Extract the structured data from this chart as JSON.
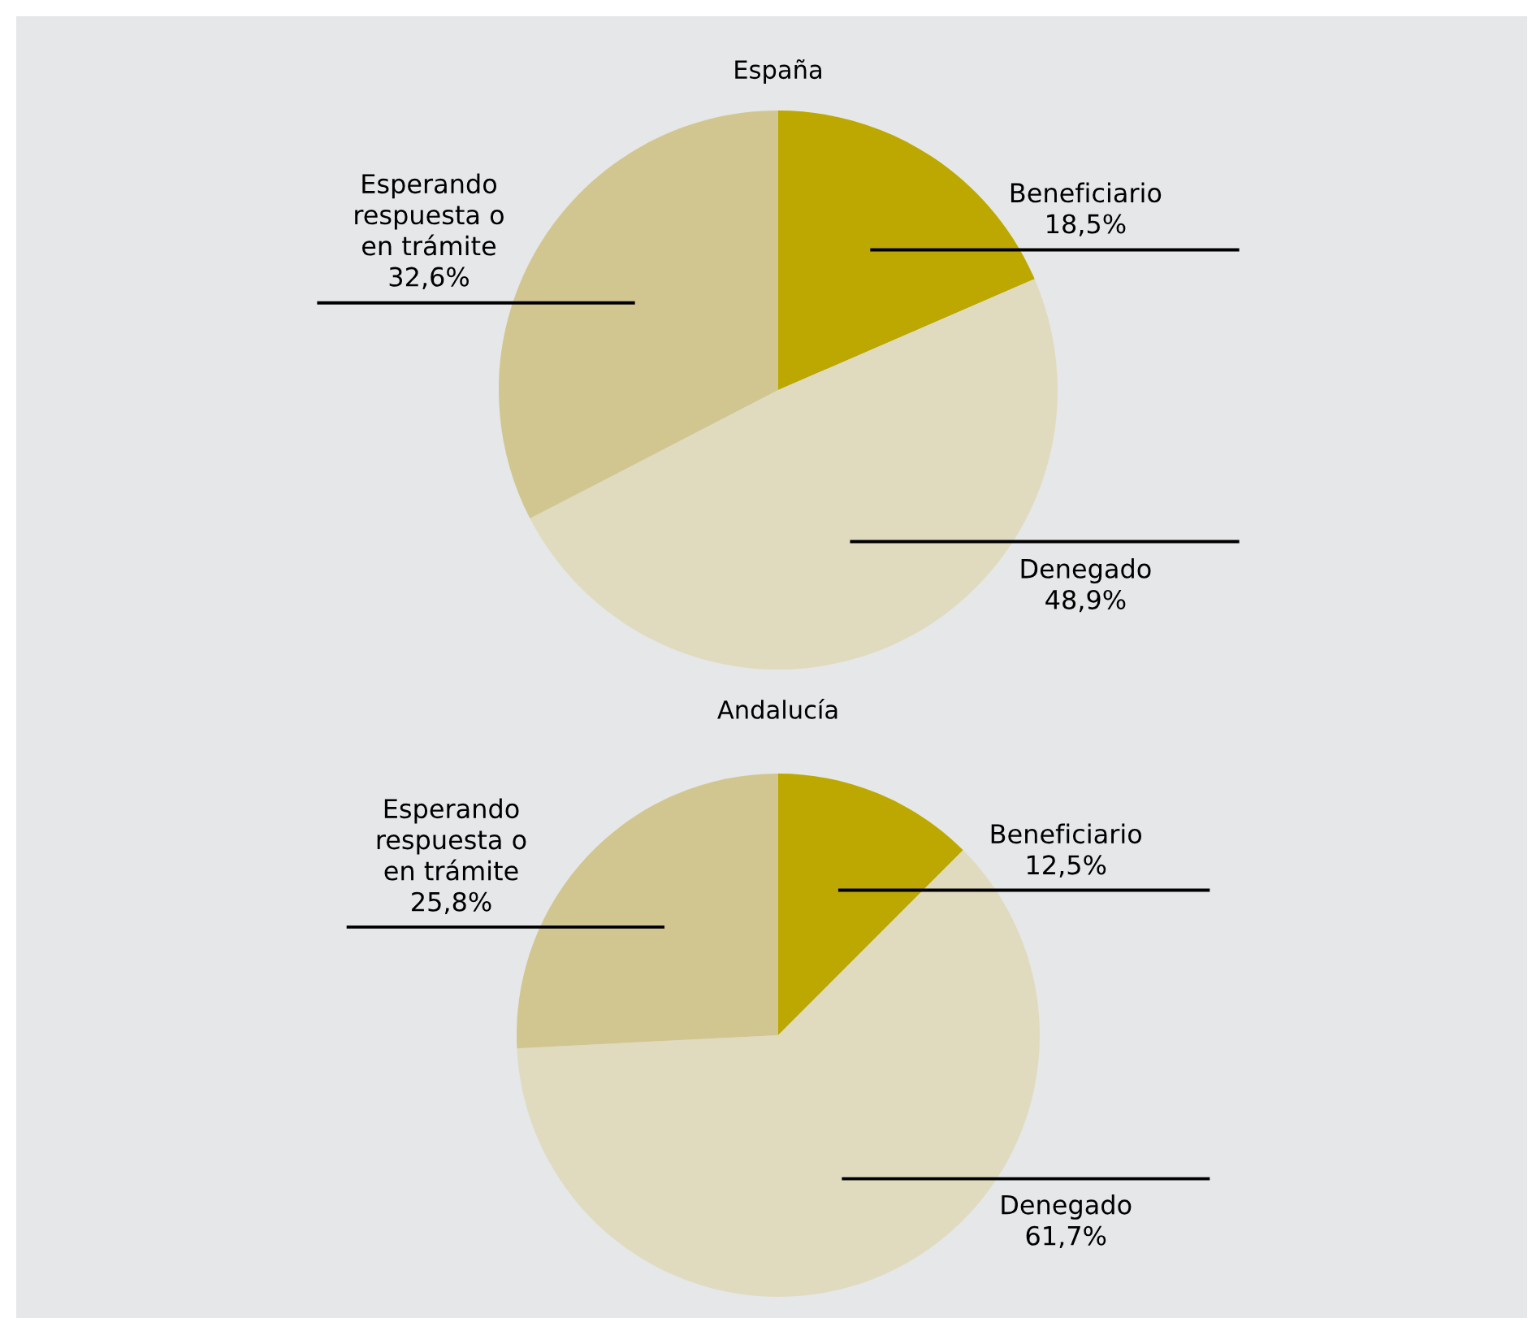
{
  "chart_data": [
    {
      "type": "pie",
      "title": "España",
      "categories": [
        "Beneficiario",
        "Denegado",
        "Esperando respuesta o en trámite"
      ],
      "values": [
        18.5,
        48.9,
        32.6
      ],
      "value_labels": [
        "18,5%",
        "48,9%",
        "32,6%"
      ],
      "colors": [
        "#bca800",
        "#e0dbbf",
        "#d2c690"
      ]
    },
    {
      "type": "pie",
      "title": "Andalucía",
      "categories": [
        "Beneficiario",
        "Denegado",
        "Esperando respuesta o en trámite"
      ],
      "values": [
        12.5,
        61.7,
        25.8
      ],
      "value_labels": [
        "12,5%",
        "61,7%",
        "25,8%"
      ],
      "colors": [
        "#bca800",
        "#e0dbbf",
        "#d2c690"
      ]
    }
  ]
}
